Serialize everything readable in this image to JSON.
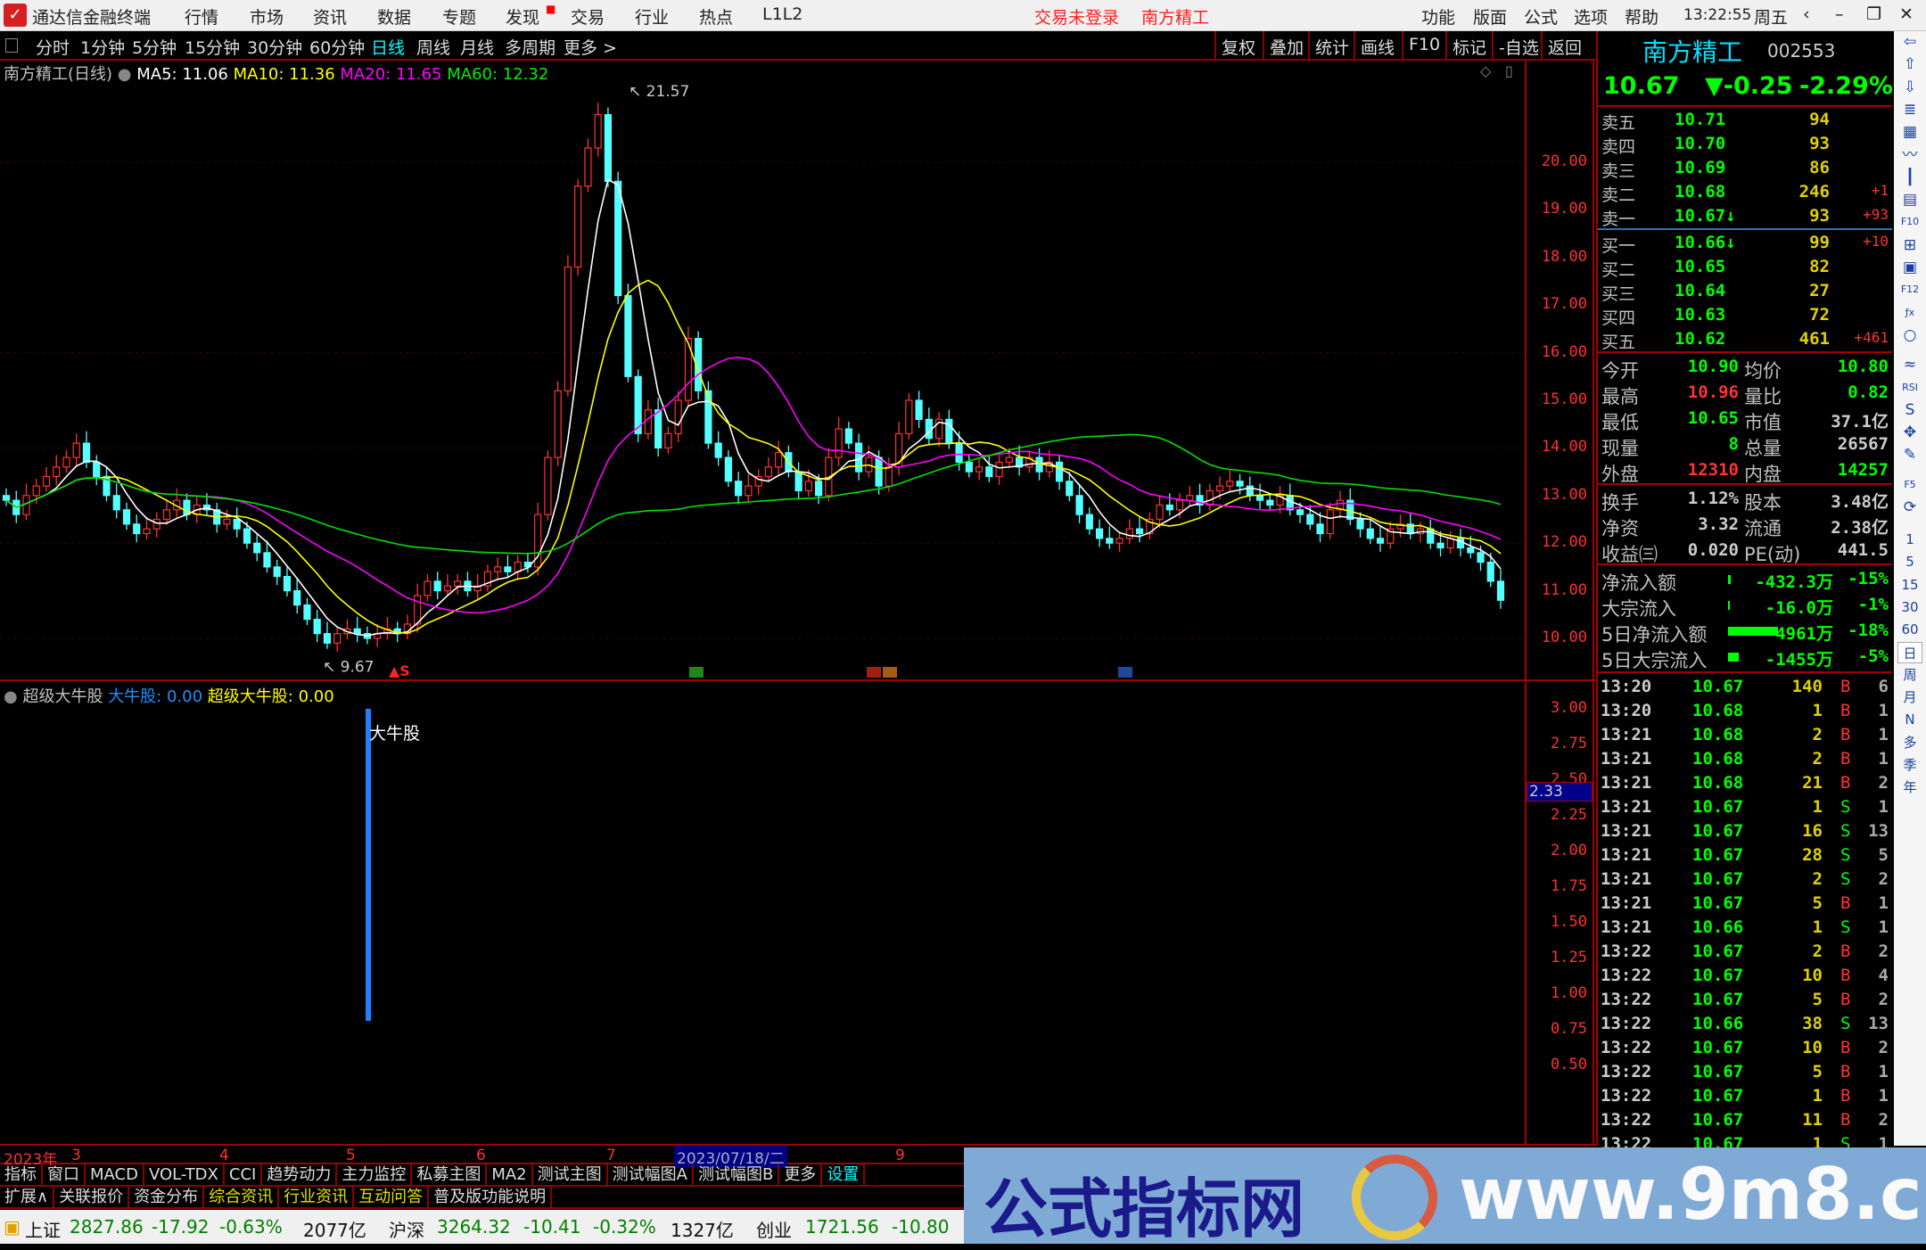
{
  "app": {
    "title": "通达信金融终端",
    "menu": [
      "行情",
      "市场",
      "资讯",
      "数据",
      "专题",
      "发现",
      "交易",
      "行业",
      "热点",
      "L1L2"
    ],
    "login_status": "交易未登录",
    "stock_short": "南方精工",
    "right_menu": [
      "功能",
      "版面",
      "公式",
      "选项",
      "帮助"
    ],
    "clock": "13:22:55",
    "weekday": "周五"
  },
  "toolbar": {
    "periods": [
      "分时",
      "1分钟",
      "5分钟",
      "15分钟",
      "30分钟",
      "60分钟",
      "日线",
      "周线",
      "月线",
      "多周期",
      "更多 >"
    ],
    "active_period": "日线",
    "right_buttons": [
      "复权",
      "叠加",
      "统计",
      "画线",
      "F10",
      "标记",
      "-自选",
      "返回"
    ]
  },
  "chart": {
    "title": "南方精工(日线)",
    "ma5": "MA5: 11.06",
    "ma10": "MA10: 11.36",
    "ma20": "MA20: 11.65",
    "ma60": "MA60: 12.32",
    "high_label": "21.57",
    "low_label": "9.67",
    "signal_marker": "S",
    "price_ticks": [
      "20.00",
      "19.00",
      "18.00",
      "17.00",
      "16.00",
      "15.00",
      "14.00",
      "13.00",
      "12.00",
      "11.00",
      "10.00"
    ],
    "colors": {
      "up": "#ff3232",
      "down": "#54ffff",
      "ma5": "#ffffff",
      "ma10": "#ffff00",
      "ma20": "#ff00ff",
      "ma60": "#00e000"
    }
  },
  "chart_data": {
    "type": "candlestick",
    "ylim": [
      9.5,
      21.8
    ],
    "year": "2023年",
    "x_ticks": [
      "3",
      "4",
      "5",
      "6",
      "7",
      "9"
    ],
    "crosshair_date": "2023/07/18/二",
    "close": [
      12.9,
      12.6,
      13.0,
      13.2,
      13.4,
      13.6,
      13.8,
      14.1,
      13.7,
      13.4,
      13.0,
      12.7,
      12.4,
      12.2,
      12.3,
      12.5,
      12.7,
      12.9,
      12.6,
      12.8,
      12.7,
      12.4,
      12.5,
      12.3,
      12.0,
      11.8,
      11.5,
      11.3,
      11.0,
      10.7,
      10.4,
      10.1,
      9.9,
      10.1,
      10.2,
      10.1,
      10.0,
      10.1,
      10.2,
      10.1,
      10.3,
      10.9,
      11.2,
      11.0,
      11.1,
      11.2,
      11.0,
      11.1,
      11.4,
      11.5,
      11.4,
      11.6,
      11.5,
      12.6,
      13.8,
      15.2,
      17.8,
      19.5,
      20.3,
      21.0,
      19.6,
      17.2,
      15.5,
      14.3,
      14.8,
      14.0,
      14.3,
      15.0,
      16.3,
      15.2,
      14.1,
      13.8,
      13.3,
      13.0,
      13.2,
      13.4,
      13.6,
      13.9,
      13.5,
      13.1,
      13.3,
      13.0,
      13.8,
      14.4,
      14.1,
      13.5,
      13.8,
      13.2,
      13.6,
      14.3,
      15.0,
      14.6,
      14.2,
      14.6,
      14.1,
      13.7,
      13.5,
      13.6,
      13.4,
      13.7,
      13.8,
      13.6,
      13.8,
      13.5,
      13.7,
      13.3,
      13.0,
      12.6,
      12.3,
      12.1,
      12.0,
      12.1,
      12.3,
      12.2,
      12.5,
      12.8,
      12.7,
      12.9,
      13.0,
      12.8,
      13.1,
      13.2,
      13.3,
      13.2,
      13.0,
      12.9,
      12.8,
      13.0,
      12.7,
      12.6,
      12.4,
      12.2,
      12.7,
      12.9,
      12.5,
      12.3,
      12.1,
      12.0,
      12.3,
      12.4,
      12.2,
      12.3,
      12.0,
      11.9,
      12.1,
      11.9,
      11.8,
      11.6,
      11.2,
      10.8
    ]
  },
  "indicator": {
    "name": "超级大牛股",
    "line1": "大牛股: 0.00",
    "line2": "超级大牛股: 0.00",
    "bar_label": "大牛股",
    "bar_value": 3.0,
    "ticks": [
      "3.00",
      "2.75",
      "2.50",
      "2.25",
      "2.00",
      "1.75",
      "1.50",
      "1.25",
      "1.00",
      "0.75",
      "0.50"
    ],
    "cursor_value": "2.33"
  },
  "bottom_tabs": {
    "row1": [
      "指标",
      "窗口",
      "MACD",
      "VOL-TDX",
      "CCI",
      "趋势动力",
      "主力监控",
      "私募主图",
      "MA2",
      "测试主图",
      "测试幅图A",
      "测试幅图B",
      "更多",
      "设置"
    ],
    "row2": [
      "扩展∧",
      "关联报价",
      "资金分布",
      "综合资讯",
      "行业资讯",
      "互动问答",
      "普及版功能说明"
    ]
  },
  "quote": {
    "name": "南方精工",
    "code": "002553",
    "price": "10.67",
    "change": "▼-0.25",
    "pct": "-2.29%",
    "sells": [
      {
        "label": "卖五",
        "price": "10.71",
        "vol": "94",
        "delta": ""
      },
      {
        "label": "卖四",
        "price": "10.70",
        "vol": "93",
        "delta": ""
      },
      {
        "label": "卖三",
        "price": "10.69",
        "vol": "86",
        "delta": ""
      },
      {
        "label": "卖二",
        "price": "10.68",
        "vol": "246",
        "delta": "+1"
      },
      {
        "label": "卖一",
        "price": "10.67↓",
        "vol": "93",
        "delta": "+93"
      }
    ],
    "buys": [
      {
        "label": "买一",
        "price": "10.66↓",
        "vol": "99",
        "delta": "+10"
      },
      {
        "label": "买二",
        "price": "10.65",
        "vol": "82",
        "delta": ""
      },
      {
        "label": "买三",
        "price": "10.64",
        "vol": "27",
        "delta": ""
      },
      {
        "label": "买四",
        "price": "10.63",
        "vol": "72",
        "delta": ""
      },
      {
        "label": "买五",
        "price": "10.62",
        "vol": "461",
        "delta": "+461"
      }
    ],
    "stats": [
      [
        "今开",
        "10.90",
        "均价",
        "10.80"
      ],
      [
        "最高",
        "10.96",
        "量比",
        "0.82"
      ],
      [
        "最低",
        "10.65",
        "市值",
        "37.1亿"
      ],
      [
        "现量",
        "8",
        "总量",
        "26567"
      ],
      [
        "外盘",
        "12310",
        "内盘",
        "14257"
      ]
    ],
    "fund": [
      [
        "换手",
        "1.12%",
        "股本",
        "3.48亿"
      ],
      [
        "净资",
        "3.32",
        "流通",
        "2.38亿"
      ],
      [
        "收益㈢",
        "0.020",
        "PE(动)",
        "441.5"
      ]
    ],
    "flows": [
      [
        "净流入额",
        "-432.3万",
        "-15%"
      ],
      [
        "大宗流入",
        "-16.0万",
        "-1%"
      ],
      [
        "5日净流入额",
        "-4961万",
        "-18%"
      ],
      [
        "5日大宗流入",
        "-1455万",
        "-5%"
      ]
    ],
    "ticks": [
      [
        "13:20",
        "10.67",
        "140",
        "B",
        "6"
      ],
      [
        "13:20",
        "10.68",
        "1",
        "B",
        "1"
      ],
      [
        "13:21",
        "10.68",
        "2",
        "B",
        "1"
      ],
      [
        "13:21",
        "10.68",
        "2",
        "B",
        "1"
      ],
      [
        "13:21",
        "10.68",
        "21",
        "B",
        "2"
      ],
      [
        "13:21",
        "10.67",
        "1",
        "S",
        "1"
      ],
      [
        "13:21",
        "10.67",
        "16",
        "S",
        "13"
      ],
      [
        "13:21",
        "10.67",
        "28",
        "S",
        "5"
      ],
      [
        "13:21",
        "10.67",
        "2",
        "S",
        "2"
      ],
      [
        "13:21",
        "10.67",
        "5",
        "B",
        "1"
      ],
      [
        "13:21",
        "10.66",
        "1",
        "S",
        "1"
      ],
      [
        "13:22",
        "10.67",
        "2",
        "B",
        "2"
      ],
      [
        "13:22",
        "10.67",
        "10",
        "B",
        "4"
      ],
      [
        "13:22",
        "10.67",
        "5",
        "B",
        "2"
      ],
      [
        "13:22",
        "10.66",
        "38",
        "S",
        "13"
      ],
      [
        "13:22",
        "10.67",
        "10",
        "B",
        "2"
      ],
      [
        "13:22",
        "10.67",
        "5",
        "B",
        "1"
      ],
      [
        "13:22",
        "10.67",
        "1",
        "B",
        "1"
      ],
      [
        "13:22",
        "10.67",
        "11",
        "B",
        "2"
      ],
      [
        "13:22",
        "10.67",
        "1",
        "S",
        "1"
      ]
    ]
  },
  "sidebar": {
    "icons": [
      "left-arrow",
      "up-arrow",
      "down-arrow",
      "quote-list",
      "grid",
      "line-chart",
      "candle-chart",
      "news",
      "f10",
      "tree",
      "info",
      "f12",
      "formula",
      "circle",
      "wave",
      "rsi",
      "s-logo",
      "move",
      "pencil",
      "f5",
      "refresh"
    ],
    "periods": [
      "1",
      "5",
      "15",
      "30",
      "60",
      "日",
      "周",
      "月",
      "N",
      "多",
      "季",
      "年"
    ],
    "active_period": "日"
  },
  "status": {
    "sh_name": "上证",
    "sh_val": "2827.86",
    "sh_chg": "-17.92",
    "sh_pct": "-0.63%",
    "sh_amt": "2077亿",
    "hs_name": "沪深",
    "hs_val": "3264.32",
    "hs_chg": "-10.41",
    "hs_pct": "-0.32%",
    "hs_amt": "1327亿",
    "cy_name": "创业",
    "cy_val": "1721.56",
    "cy_chg": "-10.80"
  },
  "watermark": {
    "cn": "公式指标网",
    "url": "www.9m8.cn"
  }
}
